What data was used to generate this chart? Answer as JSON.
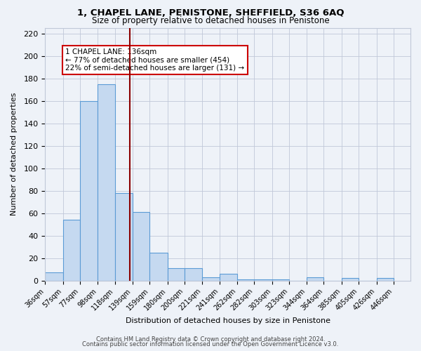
{
  "title": "1, CHAPEL LANE, PENISTONE, SHEFFIELD, S36 6AQ",
  "subtitle": "Size of property relative to detached houses in Penistone",
  "xlabel": "Distribution of detached houses by size in Penistone",
  "ylabel": "Number of detached properties",
  "bin_labels": [
    "36sqm",
    "57sqm",
    "77sqm",
    "98sqm",
    "118sqm",
    "139sqm",
    "159sqm",
    "180sqm",
    "200sqm",
    "221sqm",
    "241sqm",
    "262sqm",
    "282sqm",
    "303sqm",
    "323sqm",
    "344sqm",
    "364sqm",
    "385sqm",
    "405sqm",
    "426sqm",
    "446sqm"
  ],
  "bin_edges": [
    36,
    57,
    77,
    98,
    118,
    139,
    159,
    180,
    200,
    221,
    241,
    262,
    282,
    303,
    323,
    344,
    364,
    385,
    405,
    426,
    446
  ],
  "bar_heights": [
    7,
    54,
    160,
    175,
    78,
    61,
    25,
    11,
    11,
    3,
    6,
    1,
    1,
    1,
    0,
    3,
    0,
    2,
    0,
    2
  ],
  "bar_color": "#c5d9f0",
  "bar_edge_color": "#5b9bd5",
  "property_size": 136,
  "vline_color": "#8b0000",
  "annotation_text": "1 CHAPEL LANE: 136sqm\n← 77% of detached houses are smaller (454)\n22% of semi-detached houses are larger (131) →",
  "annotation_box_color": "#ffffff",
  "annotation_box_edge": "#cc0000",
  "ylim": [
    0,
    225
  ],
  "yticks": [
    0,
    20,
    40,
    60,
    80,
    100,
    120,
    140,
    160,
    180,
    200,
    220
  ],
  "grid_color": "#c0c8d8",
  "bg_color": "#eef2f8",
  "footer_line1": "Contains HM Land Registry data © Crown copyright and database right 2024.",
  "footer_line2": "Contains public sector information licensed under the Open Government Licence v3.0."
}
